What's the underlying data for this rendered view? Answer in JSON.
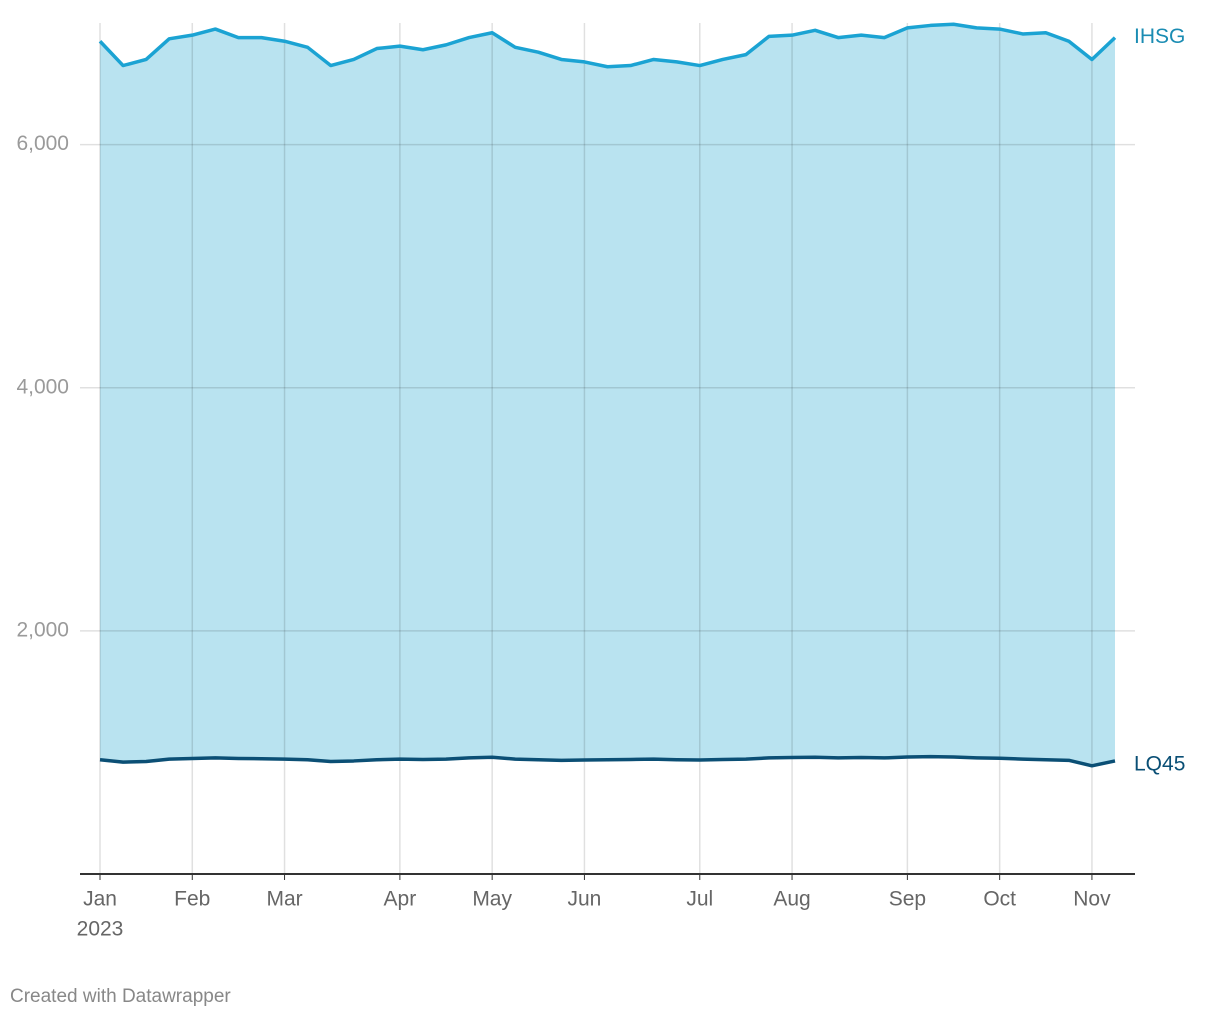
{
  "chart_data": {
    "type": "line",
    "area": true,
    "categories": [
      "Jan",
      null,
      null,
      null,
      "Feb",
      null,
      null,
      null,
      "Mar",
      null,
      null,
      null,
      null,
      "Apr",
      null,
      null,
      null,
      "May",
      null,
      null,
      null,
      "Jun",
      null,
      null,
      null,
      null,
      "Jul",
      null,
      null,
      null,
      "Aug",
      null,
      null,
      null,
      null,
      "Sep",
      null,
      null,
      null,
      "Oct",
      null,
      null,
      null,
      "Nov",
      null
    ],
    "year_label": "2023",
    "series": [
      {
        "name": "IHSG",
        "color": "#1ba3d3",
        "label_color": "#1a8cb3",
        "area_color": "#b9e3f0",
        "values": [
          6850,
          6650,
          6700,
          6870,
          6900,
          6950,
          6880,
          6880,
          6850,
          6800,
          6650,
          6700,
          6790,
          6810,
          6780,
          6820,
          6880,
          6920,
          6800,
          6760,
          6700,
          6680,
          6640,
          6650,
          6700,
          6680,
          6650,
          6700,
          6740,
          6890,
          6900,
          6940,
          6880,
          6900,
          6880,
          6960,
          6980,
          6990,
          6960,
          6950,
          6910,
          6920,
          6850,
          6700,
          6880
        ]
      },
      {
        "name": "LQ45",
        "color": "#0b4f75",
        "label_color": "#0a4f75",
        "values": [
          940,
          920,
          925,
          945,
          950,
          955,
          950,
          948,
          945,
          940,
          925,
          930,
          940,
          945,
          942,
          945,
          955,
          960,
          945,
          940,
          935,
          938,
          940,
          942,
          945,
          940,
          938,
          942,
          945,
          955,
          958,
          960,
          955,
          958,
          955,
          962,
          965,
          962,
          955,
          952,
          945,
          940,
          935,
          890,
          930
        ]
      }
    ],
    "ylim": [
      0,
      7000
    ],
    "yticks": [
      {
        "value": 2000,
        "label": "2,000"
      },
      {
        "value": 4000,
        "label": "4,000"
      },
      {
        "value": 6000,
        "label": "6,000"
      }
    ],
    "grid": true,
    "footer": "Created with Datawrapper"
  }
}
